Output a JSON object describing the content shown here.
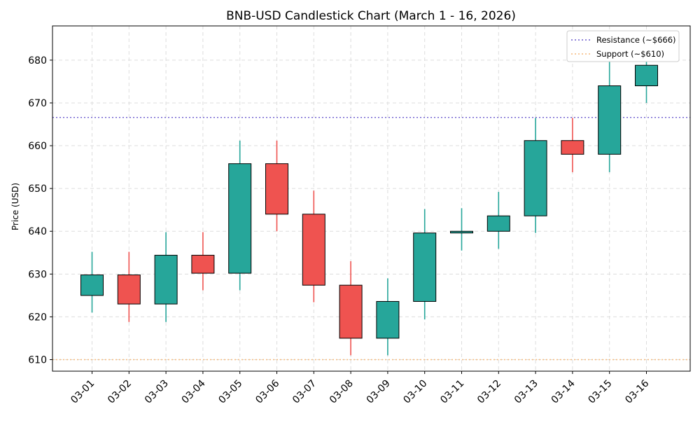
{
  "chart_data": {
    "type": "candlestick",
    "title": "BNB-USD Candlestick Chart (March 1 - 16, 2026)",
    "xlabel": "",
    "ylabel": "Price (USD)",
    "ylim": [
      607.3,
      688
    ],
    "yticks": [
      610,
      620,
      630,
      640,
      650,
      660,
      670,
      680
    ],
    "grid": true,
    "legend_position": "top-right",
    "colors": {
      "up": "#26a69a",
      "down": "#ef5350",
      "edge": "#000000",
      "resistance": "#6a5acd",
      "support": "#f5b97a",
      "grid": "#dddddd"
    },
    "candles": [
      {
        "date": "03-01",
        "open": 625.0,
        "high": 635.2,
        "low": 621.0,
        "close": 629.8
      },
      {
        "date": "03-02",
        "open": 629.8,
        "high": 635.2,
        "low": 618.8,
        "close": 623.0
      },
      {
        "date": "03-03",
        "open": 623.0,
        "high": 639.8,
        "low": 618.8,
        "close": 634.4
      },
      {
        "date": "03-04",
        "open": 634.4,
        "high": 639.8,
        "low": 626.2,
        "close": 630.2
      },
      {
        "date": "03-05",
        "open": 630.2,
        "high": 661.2,
        "low": 626.2,
        "close": 655.8
      },
      {
        "date": "03-06",
        "open": 655.8,
        "high": 661.2,
        "low": 640.0,
        "close": 644.0
      },
      {
        "date": "03-07",
        "open": 644.0,
        "high": 649.5,
        "low": 623.4,
        "close": 627.4
      },
      {
        "date": "03-08",
        "open": 627.4,
        "high": 633.0,
        "low": 611.0,
        "close": 615.0
      },
      {
        "date": "03-09",
        "open": 615.0,
        "high": 629.0,
        "low": 611.0,
        "close": 623.6
      },
      {
        "date": "03-10",
        "open": 623.6,
        "high": 645.2,
        "low": 619.4,
        "close": 639.6
      },
      {
        "date": "03-11",
        "open": 639.6,
        "high": 645.4,
        "low": 635.5,
        "close": 640.0
      },
      {
        "date": "03-12",
        "open": 640.0,
        "high": 649.2,
        "low": 635.9,
        "close": 643.6
      },
      {
        "date": "03-13",
        "open": 643.6,
        "high": 666.5,
        "low": 639.6,
        "close": 661.2
      },
      {
        "date": "03-14",
        "open": 661.2,
        "high": 666.5,
        "low": 653.8,
        "close": 658.0
      },
      {
        "date": "03-15",
        "open": 658.0,
        "high": 679.6,
        "low": 653.8,
        "close": 674.0
      },
      {
        "date": "03-16",
        "open": 674.0,
        "high": 679.6,
        "low": 670.0,
        "close": 678.8
      }
    ],
    "reference_lines": [
      {
        "label": "Resistance (~$666)",
        "value": 666.6,
        "style": "dotted",
        "color_key": "resistance"
      },
      {
        "label": "Support (~$610)",
        "value": 610,
        "style": "dotted",
        "color_key": "support"
      }
    ]
  }
}
